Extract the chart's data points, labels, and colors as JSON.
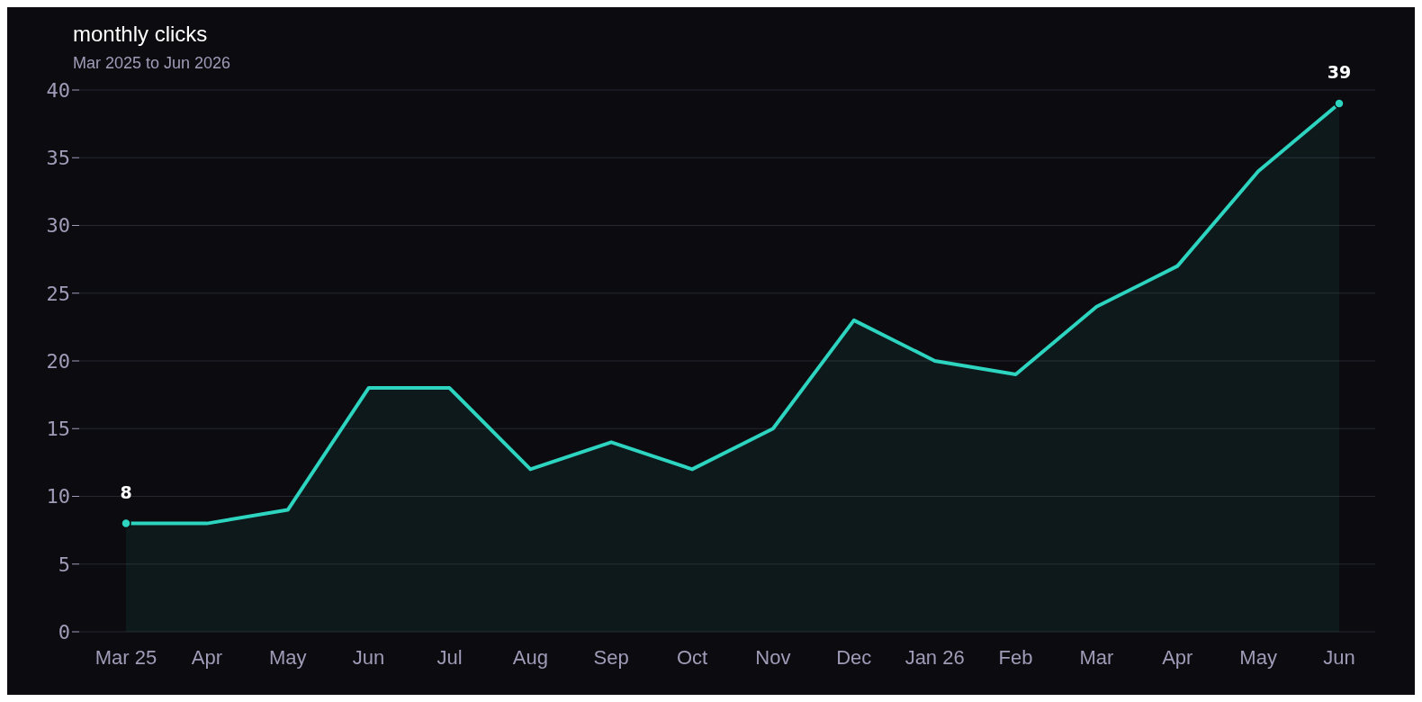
{
  "chart_data": {
    "type": "area",
    "title": "monthly clicks",
    "subtitle": "Mar 2025 to Jun 2026",
    "categories": [
      "Mar 25",
      "Apr",
      "May",
      "Jun",
      "Jul",
      "Aug",
      "Sep",
      "Oct",
      "Nov",
      "Dec",
      "Jan 26",
      "Feb",
      "Mar",
      "Apr",
      "May",
      "Jun"
    ],
    "series": [
      {
        "color": "#2dd4bf",
        "values": [
          8,
          8,
          9,
          18,
          18,
          12,
          14,
          12,
          15,
          23,
          20,
          19,
          24,
          27,
          34,
          39
        ],
        "value_labels": [
          "8",
          null,
          null,
          null,
          null,
          null,
          null,
          null,
          null,
          null,
          null,
          null,
          null,
          null,
          null,
          "39"
        ]
      }
    ],
    "ylim": [
      0,
      40
    ],
    "yticks": [
      0,
      5,
      10,
      15,
      20,
      25,
      30,
      35,
      40
    ],
    "grid": "y"
  }
}
